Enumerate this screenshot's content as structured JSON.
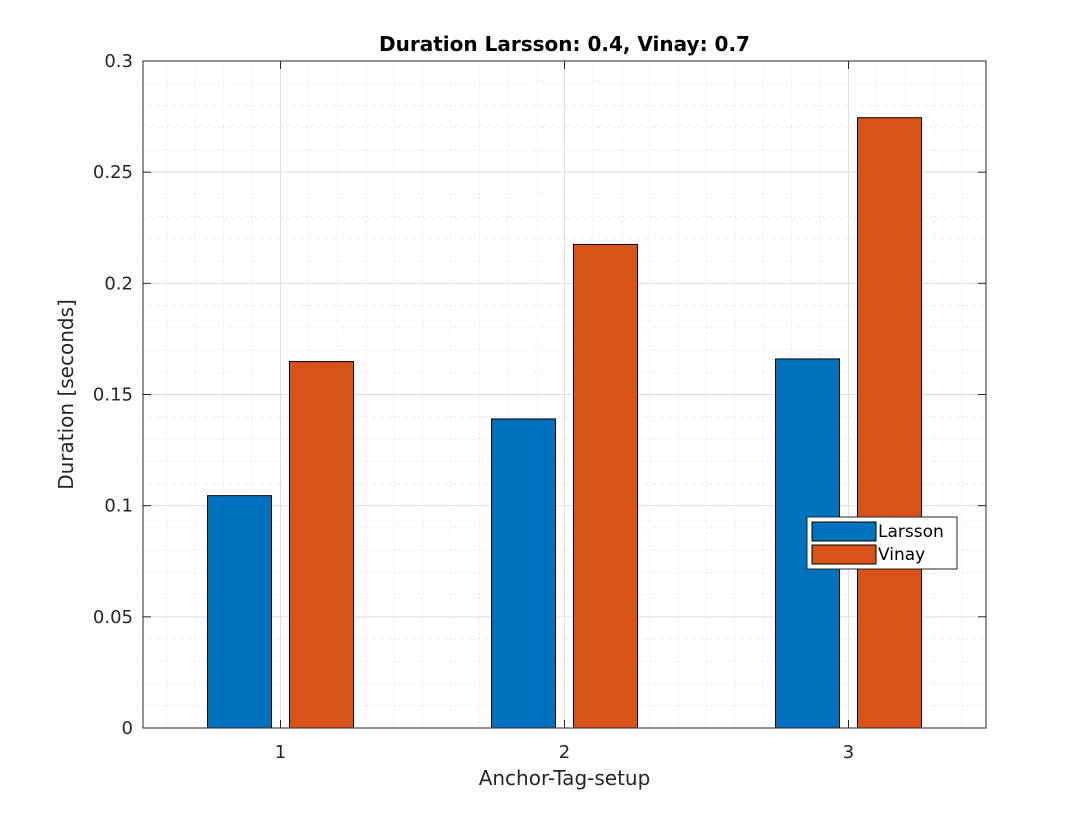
{
  "chart_data": {
    "type": "bar",
    "title": "Duration Larsson: 0.4, Vinay: 0.7",
    "xlabel": "Anchor-Tag-setup",
    "ylabel": "Duration [seconds]",
    "categories": [
      "1",
      "2",
      "3"
    ],
    "series": [
      {
        "name": "Larsson",
        "color": "#0072BD",
        "values": [
          0.1045,
          0.139,
          0.166
        ]
      },
      {
        "name": "Vinay",
        "color": "#D95319",
        "values": [
          0.1648,
          0.2175,
          0.2745
        ]
      }
    ],
    "ylim": [
      0,
      0.3
    ],
    "yticks": [
      "0",
      "0.05",
      "0.1",
      "0.15",
      "0.2",
      "0.25",
      "0.3"
    ],
    "grid": true,
    "minor_grid": true,
    "legend": "east"
  }
}
